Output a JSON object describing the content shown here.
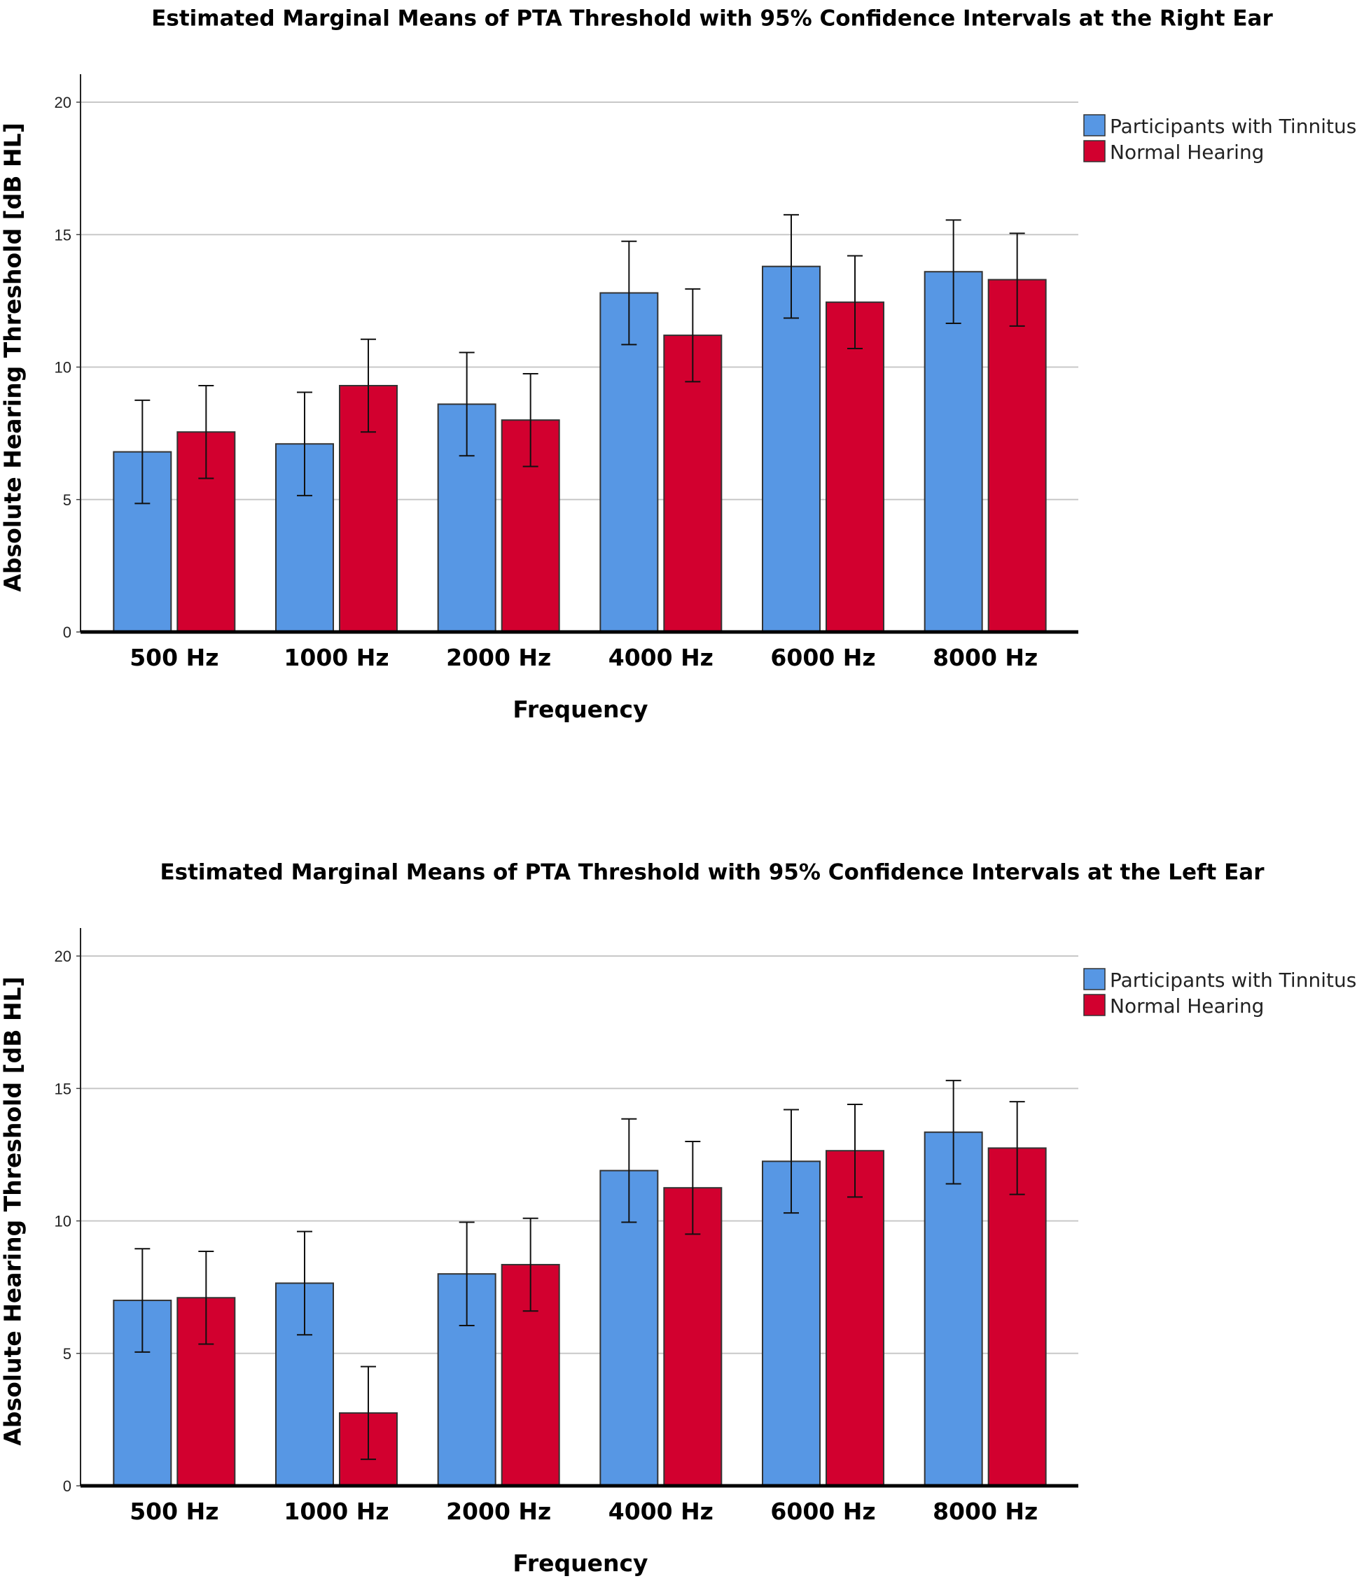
{
  "chart_data": [
    {
      "type": "bar",
      "title": "Estimated Marginal Means of PTA Threshold with 95% Confidence Intervals at the Right Ear",
      "xlabel": "Frequency",
      "ylabel": "Absolute Hearing Threshold [dB HL]",
      "ylim": [
        0,
        20
      ],
      "yticks": [
        0,
        5,
        10,
        15,
        20
      ],
      "grid": true,
      "legend_position": "right",
      "categories": [
        "500 Hz",
        "1000 Hz",
        "2000 Hz",
        "4000 Hz",
        "6000 Hz",
        "8000 Hz"
      ],
      "series": [
        {
          "name": "Participants with Tinnitus",
          "color": "#5797E4",
          "values": [
            6.8,
            7.1,
            8.6,
            12.8,
            13.8,
            13.6
          ],
          "ci_lower": [
            4.85,
            5.15,
            6.65,
            10.85,
            11.85,
            11.65
          ],
          "ci_upper": [
            8.75,
            9.05,
            10.55,
            14.75,
            15.75,
            15.55
          ]
        },
        {
          "name": "Normal Hearing",
          "color": "#D2002F",
          "values": [
            7.55,
            9.3,
            8.0,
            11.2,
            12.45,
            13.3
          ],
          "ci_lower": [
            5.8,
            7.55,
            6.25,
            9.45,
            10.7,
            11.55
          ],
          "ci_upper": [
            9.3,
            11.05,
            9.75,
            12.95,
            14.2,
            15.05
          ]
        }
      ]
    },
    {
      "type": "bar",
      "title": "Estimated Marginal Means of PTA Threshold with 95% Confidence Intervals at the Left Ear",
      "xlabel": "Frequency",
      "ylabel": "Absolute Hearing Threshold [dB HL]",
      "ylim": [
        0,
        20
      ],
      "yticks": [
        0,
        5,
        10,
        15,
        20
      ],
      "grid": true,
      "legend_position": "right",
      "categories": [
        "500 Hz",
        "1000 Hz",
        "2000 Hz",
        "4000 Hz",
        "6000 Hz",
        "8000 Hz"
      ],
      "series": [
        {
          "name": "Participants with Tinnitus",
          "color": "#5797E4",
          "values": [
            7.0,
            7.65,
            8.0,
            11.9,
            12.25,
            13.35
          ],
          "ci_lower": [
            5.05,
            5.7,
            6.05,
            9.95,
            10.3,
            11.4
          ],
          "ci_upper": [
            8.95,
            9.6,
            9.95,
            13.85,
            14.2,
            15.3
          ]
        },
        {
          "name": "Normal Hearing",
          "color": "#D2002F",
          "values": [
            7.1,
            2.75,
            8.35,
            11.25,
            12.65,
            12.75
          ],
          "ci_lower": [
            5.35,
            1.0,
            6.6,
            9.5,
            10.9,
            11.0
          ],
          "ci_upper": [
            8.85,
            4.5,
            10.1,
            13.0,
            14.4,
            14.5
          ]
        }
      ]
    }
  ]
}
